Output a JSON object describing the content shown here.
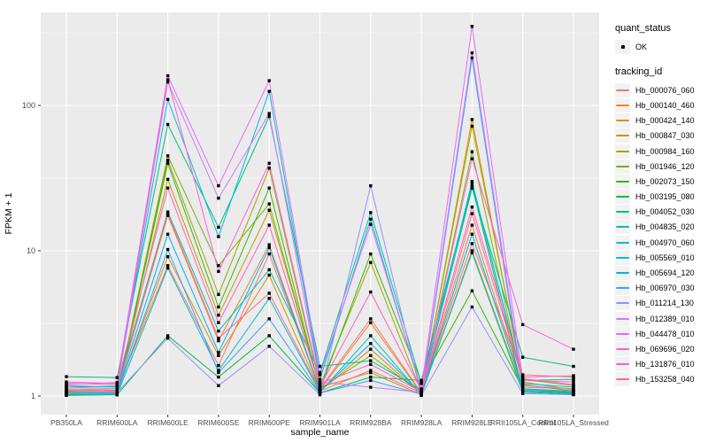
{
  "axes": {
    "y_label": "FPKM + 1",
    "x_label": "sample_name",
    "y_ticks": [
      "1",
      "10",
      "100"
    ]
  },
  "legend": {
    "quant_title": "quant_status",
    "ok_label": "OK",
    "tracking_title": "tracking_id"
  },
  "colors": {
    "panel_bg": "#EBEBEB",
    "grid": "#FFFFFF",
    "axis_text": "#4D4D4D",
    "point": "#000000",
    "legend_key_bg": "#F2F2F2"
  },
  "chart_data": {
    "type": "line",
    "title": "",
    "xlabel": "sample_name",
    "ylabel": "FPKM + 1",
    "yscale": "log10",
    "ylim": [
      0.75,
      440
    ],
    "y_tick_values": [
      1,
      10,
      100
    ],
    "grid": true,
    "legend_position": "right",
    "marker": "black point (quant_status OK)",
    "categories": [
      "PB350LA",
      "RRIM600LA",
      "RRIM600LE",
      "RRIM600SE",
      "RRIM600PE",
      "RRIM901LA",
      "RRIM928BA",
      "RRIM928LA",
      "RRIM928LE",
      "RRII105LA_Control",
      "RRII105LA_Stressed"
    ],
    "series": [
      {
        "name": "Hb_000076_060",
        "color": "#F8766D",
        "values": [
          1.12,
          1.1,
          7.9,
          1.62,
          9.5,
          1.12,
          3.4,
          1.05,
          11.2,
          1.4,
          1.35
        ]
      },
      {
        "name": "Hb_000140_460",
        "color": "#EA8331",
        "values": [
          1.1,
          1.08,
          17.5,
          2.4,
          11,
          1.1,
          3.2,
          1.04,
          15,
          1.15,
          1.12
        ]
      },
      {
        "name": "Hb_000424_140",
        "color": "#D89000",
        "values": [
          1.06,
          1.07,
          9.1,
          1.9,
          6.8,
          1.08,
          2.1,
          1.03,
          80,
          1.25,
          1.1
        ]
      },
      {
        "name": "Hb_000847_030",
        "color": "#C09B00",
        "values": [
          1.04,
          1.05,
          31,
          3.6,
          19,
          1.15,
          1.45,
          1.02,
          10,
          1.1,
          1.05
        ]
      },
      {
        "name": "Hb_000984_160",
        "color": "#A3A500",
        "values": [
          1.08,
          1.06,
          42,
          5.0,
          37,
          1.18,
          8.3,
          1.06,
          72,
          1.3,
          1.18
        ]
      },
      {
        "name": "Hb_001946_120",
        "color": "#7CAE00",
        "values": [
          1.05,
          1.04,
          45,
          7.9,
          21,
          1.12,
          1.9,
          1.05,
          48,
          1.2,
          1.08
        ]
      },
      {
        "name": "Hb_002073_150",
        "color": "#39B600",
        "values": [
          1.02,
          1.03,
          40,
          4.1,
          27,
          1.1,
          9.5,
          1.25,
          5.3,
          1.12,
          1.06
        ]
      },
      {
        "name": "Hb_003195_080",
        "color": "#00BB4E",
        "values": [
          1.01,
          1.02,
          2.6,
          1.35,
          2.6,
          1.05,
          1.35,
          1.28,
          28,
          1.08,
          1.04
        ]
      },
      {
        "name": "Hb_004052_030",
        "color": "#00BF7D",
        "values": [
          1.36,
          1.34,
          74,
          14.5,
          84,
          1.6,
          1.75,
          1.1,
          27,
          1.85,
          1.6
        ]
      },
      {
        "name": "Hb_004835_020",
        "color": "#00C1A3",
        "values": [
          1.18,
          1.15,
          18.5,
          2.8,
          7.4,
          1.45,
          18.3,
          1.22,
          29,
          1.28,
          1.3
        ]
      },
      {
        "name": "Hb_004970_060",
        "color": "#00BFC4",
        "values": [
          1.03,
          1.02,
          7.6,
          1.5,
          4.7,
          1.06,
          2.6,
          1.02,
          9.7,
          1.06,
          1.03
        ]
      },
      {
        "name": "Hb_005569_010",
        "color": "#00BAE0",
        "values": [
          1.15,
          1.17,
          110,
          12.5,
          125,
          1.3,
          16.5,
          1.08,
          30,
          1.22,
          1.15
        ]
      },
      {
        "name": "Hb_005694_120",
        "color": "#00B0F6",
        "values": [
          1.07,
          1.06,
          13,
          2.0,
          10.5,
          1.08,
          2.3,
          1.04,
          13,
          1.12,
          1.08
        ]
      },
      {
        "name": "Hb_006970_030",
        "color": "#35A2FF",
        "values": [
          1.05,
          1.04,
          10.2,
          1.45,
          3.4,
          1.05,
          1.28,
          1.03,
          212,
          1.1,
          1.05
        ]
      },
      {
        "name": "Hb_011214_130",
        "color": "#9590FF",
        "values": [
          1.05,
          1.06,
          2.5,
          1.18,
          2.2,
          1.02,
          28,
          1.01,
          4.1,
          1.04,
          1.02
        ]
      },
      {
        "name": "Hb_012389_010",
        "color": "#C77CFF",
        "values": [
          1.15,
          1.12,
          145,
          23,
          88,
          1.25,
          1.15,
          1.06,
          230,
          1.18,
          1.12
        ]
      },
      {
        "name": "Hb_044478_010",
        "color": "#E76BF3",
        "values": [
          1.2,
          1.24,
          160,
          28,
          148,
          1.4,
          15.2,
          1.12,
          350,
          1.32,
          1.2
        ]
      },
      {
        "name": "Hb_069696_020",
        "color": "#FA62DB",
        "values": [
          1.25,
          1.22,
          150,
          7.2,
          40,
          1.22,
          1.65,
          1.07,
          43,
          3.1,
          2.1
        ]
      },
      {
        "name": "Hb_131876_010",
        "color": "#FF62BC",
        "values": [
          1.22,
          1.2,
          27,
          3.2,
          15,
          1.15,
          5.2,
          1.09,
          20,
          1.35,
          1.38
        ]
      },
      {
        "name": "Hb_153258_040",
        "color": "#FF6A98",
        "values": [
          1.1,
          1.09,
          18,
          2.5,
          5.1,
          1.08,
          1.5,
          1.05,
          18,
          1.28,
          1.25
        ]
      }
    ]
  }
}
